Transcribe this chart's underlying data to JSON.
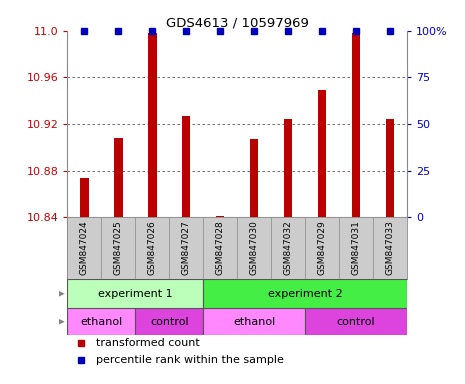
{
  "title": "GDS4613 / 10597969",
  "samples": [
    "GSM847024",
    "GSM847025",
    "GSM847026",
    "GSM847027",
    "GSM847028",
    "GSM847030",
    "GSM847032",
    "GSM847029",
    "GSM847031",
    "GSM847033"
  ],
  "transformed_counts": [
    10.874,
    10.908,
    10.998,
    10.927,
    10.841,
    10.907,
    10.924,
    10.949,
    10.998,
    10.924
  ],
  "percentile_ranks": [
    100,
    100,
    100,
    100,
    100,
    100,
    100,
    100,
    100,
    100
  ],
  "ylim_left": [
    10.84,
    11.0
  ],
  "ylim_right": [
    0,
    100
  ],
  "yticks_left": [
    10.84,
    10.88,
    10.92,
    10.96,
    11.0
  ],
  "yticks_right": [
    0,
    25,
    50,
    75,
    100
  ],
  "bar_color": "#bb0000",
  "dot_color": "#0000bb",
  "grid_color": "#555555",
  "bg_color": "#ffffff",
  "tick_label_bg": "#cccccc",
  "other_row": [
    {
      "label": "experiment 1",
      "start": 0,
      "end": 4,
      "color": "#bbffbb"
    },
    {
      "label": "experiment 2",
      "start": 4,
      "end": 10,
      "color": "#44ee44"
    }
  ],
  "protocol_row": [
    {
      "label": "ethanol",
      "start": 0,
      "end": 2,
      "color": "#ff88ff"
    },
    {
      "label": "control",
      "start": 2,
      "end": 4,
      "color": "#dd44dd"
    },
    {
      "label": "ethanol",
      "start": 4,
      "end": 7,
      "color": "#ff88ff"
    },
    {
      "label": "control",
      "start": 7,
      "end": 10,
      "color": "#dd44dd"
    }
  ],
  "legend_items": [
    {
      "label": "transformed count",
      "color": "#bb0000",
      "marker": "s"
    },
    {
      "label": "percentile rank within the sample",
      "color": "#0000bb",
      "marker": "s"
    }
  ],
  "left_axis_color": "#cc0000",
  "right_axis_color": "#0000cc",
  "bar_width": 0.25,
  "n_samples": 10
}
